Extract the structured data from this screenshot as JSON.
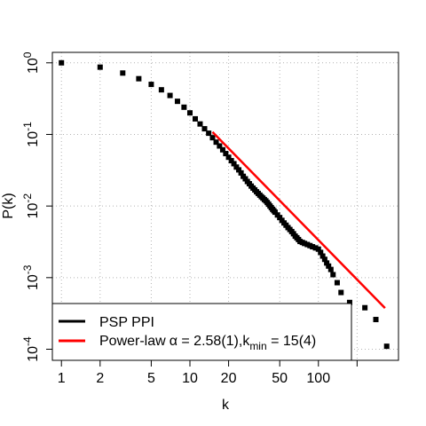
{
  "chart_data": {
    "type": "scatter",
    "x_scale": "log",
    "y_scale": "log",
    "xlabel": "k",
    "ylabel": "P(k)",
    "xlim": [
      0.85,
      420
    ],
    "ylim": [
      7e-05,
      1.4
    ],
    "grid": true,
    "x_ticks": [
      {
        "value": 1,
        "label": "1"
      },
      {
        "value": 2,
        "label": "2"
      },
      {
        "value": 5,
        "label": "5"
      },
      {
        "value": 10,
        "label": "10"
      },
      {
        "value": 20,
        "label": "20"
      },
      {
        "value": 50,
        "label": "50"
      },
      {
        "value": 100,
        "label": "100"
      },
      {
        "value": 200,
        "label": ""
      }
    ],
    "y_ticks": [
      {
        "value": 1,
        "base": "10",
        "exp": "0"
      },
      {
        "value": 0.1,
        "base": "10",
        "exp": "-1"
      },
      {
        "value": 0.01,
        "base": "10",
        "exp": "-2"
      },
      {
        "value": 0.001,
        "base": "10",
        "exp": "-3"
      },
      {
        "value": 0.0001,
        "base": "10",
        "exp": "-4"
      }
    ],
    "series": [
      {
        "name": "PSP PPI",
        "kind": "points",
        "color": "#000000",
        "x": [
          1,
          2,
          3,
          4,
          5,
          6,
          7,
          8,
          9,
          10,
          11,
          12,
          13,
          14,
          15,
          16,
          17,
          18,
          19,
          20,
          21,
          22,
          23,
          24,
          25,
          26,
          27,
          28,
          29,
          30,
          31,
          32,
          33,
          34,
          35,
          36,
          37,
          38,
          39,
          40,
          41,
          42,
          43,
          44,
          45,
          46,
          48,
          50,
          52,
          54,
          56,
          58,
          60,
          62,
          64,
          66,
          68,
          70,
          72,
          75,
          78,
          82,
          86,
          90,
          95,
          100,
          104,
          108,
          112,
          116,
          120,
          125,
          130,
          140,
          150,
          175,
          230,
          280,
          340
        ],
        "y": [
          1.0,
          0.87,
          0.72,
          0.6,
          0.5,
          0.42,
          0.35,
          0.29,
          0.24,
          0.2,
          0.165,
          0.14,
          0.12,
          0.104,
          0.09,
          0.078,
          0.069,
          0.061,
          0.054,
          0.048,
          0.043,
          0.039,
          0.035,
          0.032,
          0.029,
          0.026,
          0.024,
          0.022,
          0.0205,
          0.019,
          0.0178,
          0.0168,
          0.0158,
          0.015,
          0.0142,
          0.0135,
          0.0129,
          0.0123,
          0.0118,
          0.0112,
          0.0106,
          0.01,
          0.0095,
          0.009,
          0.0086,
          0.0082,
          0.0075,
          0.0069,
          0.0063,
          0.0058,
          0.0054,
          0.005,
          0.0047,
          0.0044,
          0.0041,
          0.0038,
          0.0036,
          0.0034,
          0.0032,
          0.0031,
          0.003,
          0.0029,
          0.0028,
          0.0027,
          0.0026,
          0.0025,
          0.00225,
          0.002,
          0.0018,
          0.0016,
          0.00145,
          0.0013,
          0.0011,
          0.00085,
          0.00062,
          0.00045,
          0.00038,
          0.00026,
          0.00011
        ]
      },
      {
        "name": "Power-law",
        "kind": "line",
        "color": "#ff0000",
        "x": [
          15,
          330
        ],
        "y": [
          0.108,
          0.000376
        ]
      }
    ],
    "legend": {
      "placement": "bottom-left",
      "entries": [
        {
          "text": "PSP PPI",
          "color": "#000000"
        },
        {
          "text": "Power-law",
          "alpha_symbol": "α",
          "equals_alpha": " = 2.58(1),k",
          "sub": "min",
          "equals_kmin": " = 15(4)",
          "color": "#ff0000"
        }
      ]
    }
  }
}
